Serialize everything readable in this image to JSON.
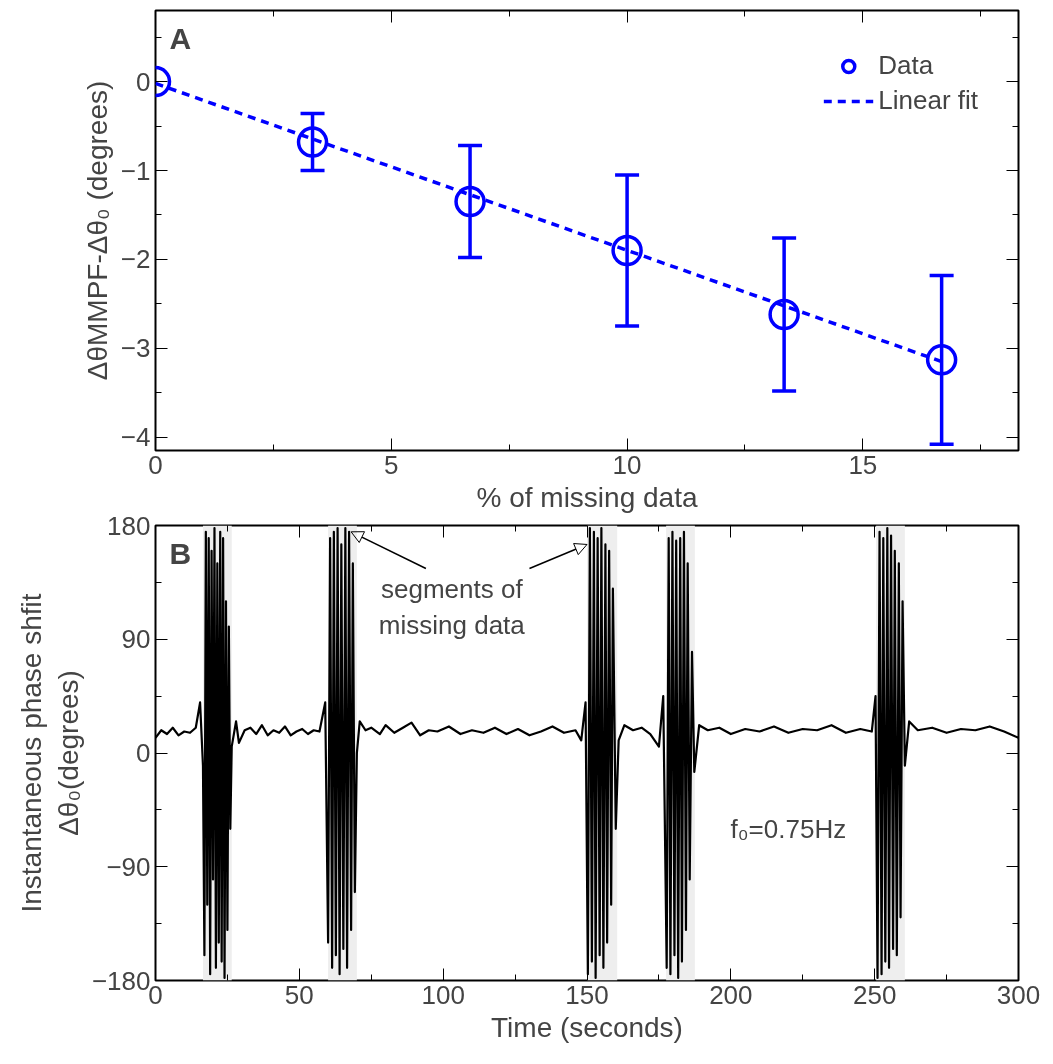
{
  "chart_data": [
    {
      "type": "scatter",
      "title": "A",
      "xlabel": "% of missing data",
      "ylabel": "ΔθMMPF-Δθ₀ (degrees)",
      "xlim": [
        0,
        18.3
      ],
      "ylim": [
        -4.15,
        0.8
      ],
      "xticks": [
        0,
        {
          "value": 2.5,
          "label": null
        },
        5,
        {
          "value": 7.5,
          "label": null
        },
        10,
        {
          "value": 12.5,
          "label": null
        },
        15,
        {
          "value": 17.5,
          "label": null
        }
      ],
      "yticks": [
        -4,
        {
          "value": -3.5,
          "label": null
        },
        -3,
        {
          "value": -2.5,
          "label": null
        },
        -2,
        {
          "value": -1.5,
          "label": null
        },
        -1,
        {
          "value": -0.5,
          "label": null
        },
        0,
        {
          "value": 0.5,
          "label": null
        }
      ],
      "grid": false,
      "legend": "top right",
      "series": [
        {
          "name": "Data",
          "color": "#0000ff",
          "marker": "circle",
          "x": [
            0,
            3.33,
            6.67,
            10,
            13.33,
            16.67
          ],
          "values": [
            0,
            -0.68,
            -1.35,
            -1.9,
            -2.62,
            -3.13
          ],
          "errors": [
            null,
            0.32,
            0.63,
            0.85,
            0.86,
            0.95
          ]
        },
        {
          "name": "Linear fit",
          "type": "line",
          "color": "#0000ff",
          "line_style": "dashed",
          "x": [
            0,
            16.67
          ],
          "values": [
            -0.02,
            -3.15
          ]
        }
      ]
    },
    {
      "type": "line",
      "title": "B",
      "xlabel": "Time (seconds)",
      "ylabel": "Instantaneous phase shfit\nΔθ₀(degrees)",
      "xlim": [
        0,
        300
      ],
      "ylim": [
        -180,
        180
      ],
      "xticks": [
        0,
        {
          "value": 25,
          "label": null
        },
        50,
        {
          "value": 75,
          "label": null
        },
        100,
        {
          "value": 125,
          "label": null
        },
        150,
        {
          "value": 175,
          "label": null
        },
        200,
        {
          "value": 225,
          "label": null
        },
        250,
        {
          "value": 275,
          "label": null
        },
        300
      ],
      "yticks": [
        -180,
        {
          "value": -135,
          "label": null
        },
        -90,
        {
          "value": -45,
          "label": null
        },
        0,
        {
          "value": 45,
          "label": null
        },
        90,
        {
          "value": 135,
          "label": null
        },
        180
      ],
      "grid": false,
      "annotations": [
        {
          "text": "segments of\nmissing data",
          "x": 68,
          "y": 175
        },
        "f₀=0.75Hz"
      ],
      "bands": [
        {
          "axis": "x",
          "from": 16.5,
          "to": 26.5,
          "color": "#eeeeee"
        },
        {
          "axis": "x",
          "from": 60,
          "to": 70,
          "color": "#eeeeee"
        },
        {
          "axis": "x",
          "from": 150,
          "to": 160.5,
          "color": "#eeeeee"
        },
        {
          "axis": "x",
          "from": 177.5,
          "to": 187.5,
          "color": "#eeeeee"
        },
        {
          "axis": "x",
          "from": 250.5,
          "to": 260.5,
          "color": "#eeeeee"
        }
      ],
      "series": [
        {
          "color": "#000000",
          "line_style": "solid",
          "x": [
            0,
            2,
            4,
            6,
            8,
            10,
            12,
            14,
            15.5,
            16.5,
            17,
            17.5,
            18,
            18.5,
            19,
            19.5,
            20,
            20.5,
            21,
            21.5,
            22,
            22.5,
            23,
            23.5,
            24,
            24.5,
            25,
            25.5,
            26,
            26.5,
            28,
            29,
            31,
            33,
            35,
            37,
            39,
            41,
            43,
            45,
            47,
            49,
            51,
            53,
            55,
            57,
            59,
            60,
            60.7,
            61.4,
            62,
            62.7,
            63.3,
            64,
            64.6,
            65.3,
            66,
            66.6,
            67.3,
            68,
            68.6,
            69.3,
            70,
            71,
            73,
            75,
            78,
            80,
            83,
            86,
            89,
            92,
            95,
            98,
            102,
            106,
            110,
            114,
            118,
            122,
            126,
            130,
            134,
            138,
            142,
            146,
            148,
            149.5,
            150.3,
            151,
            151.7,
            152.4,
            153,
            153.7,
            154.4,
            155,
            155.7,
            156.4,
            157,
            157.7,
            158.4,
            159,
            160,
            161,
            163,
            166,
            169,
            172,
            175,
            176.5,
            177.7,
            178.4,
            179,
            179.7,
            180.4,
            181,
            181.7,
            182.4,
            183,
            183.7,
            184.4,
            185,
            185.7,
            186.5,
            187.3,
            189,
            192,
            196,
            200,
            205,
            210,
            215,
            220,
            225,
            230,
            235,
            240,
            245,
            249,
            250.3,
            251,
            251.7,
            252.4,
            253,
            253.7,
            254.4,
            255,
            255.7,
            256.4,
            257,
            257.7,
            258.4,
            259,
            259.7,
            260.5,
            262,
            265,
            270,
            275,
            280,
            285,
            290,
            295,
            300
          ],
          "values": [
            12,
            18,
            15,
            20,
            14,
            17,
            16,
            20,
            40,
            -10,
            -160,
            175,
            -120,
            170,
            -175,
            160,
            -100,
            178,
            -170,
            150,
            -150,
            175,
            -165,
            170,
            -178,
            120,
            -140,
            100,
            -60,
            5,
            25,
            8,
            18,
            20,
            15,
            22,
            14,
            18,
            16,
            21,
            14,
            17,
            19,
            15,
            18,
            17,
            40,
            -150,
            170,
            -170,
            175,
            -160,
            178,
            -175,
            165,
            -155,
            178,
            -170,
            175,
            -140,
            150,
            -110,
            0,
            25,
            18,
            20,
            15,
            22,
            16,
            20,
            24,
            14,
            18,
            17,
            21,
            15,
            18,
            16,
            20,
            15,
            19,
            14,
            17,
            21,
            16,
            18,
            10,
            40,
            -175,
            178,
            -165,
            175,
            -178,
            170,
            -160,
            178,
            -170,
            165,
            -150,
            160,
            -120,
            130,
            -60,
            10,
            22,
            18,
            20,
            15,
            5,
            45,
            -170,
            170,
            -175,
            175,
            -160,
            168,
            -178,
            170,
            -165,
            175,
            -140,
            150,
            -100,
            80,
            -15,
            22,
            18,
            20,
            15,
            19,
            17,
            21,
            16,
            19,
            18,
            22,
            16,
            19,
            17,
            45,
            -178,
            175,
            -175,
            170,
            -165,
            178,
            -170,
            172,
            -155,
            160,
            -160,
            150,
            -130,
            120,
            -10,
            25,
            18,
            20,
            16,
            19,
            18,
            21,
            17,
            12
          ]
        }
      ]
    }
  ]
}
